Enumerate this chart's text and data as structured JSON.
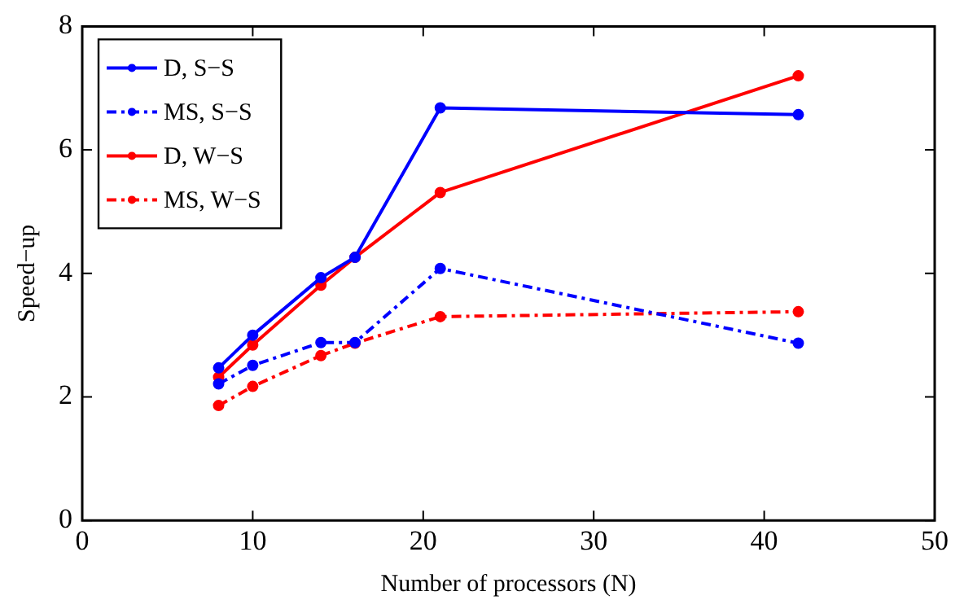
{
  "chart_data": {
    "type": "line",
    "xlabel": "Number of processors (N)",
    "ylabel": "Speed−up",
    "x": [
      8,
      10,
      14,
      16,
      21,
      42
    ],
    "series": [
      {
        "name": "D, S−S",
        "color": "#0000ff",
        "line_style": "solid",
        "values": [
          2.47,
          3.0,
          3.93,
          4.26,
          6.68,
          6.57
        ]
      },
      {
        "name": "MS, S−S",
        "color": "#0000ff",
        "line_style": "dashed",
        "values": [
          2.21,
          2.51,
          2.88,
          2.88,
          4.08,
          2.87
        ]
      },
      {
        "name": "D, W−S",
        "color": "#ff0000",
        "line_style": "solid",
        "values": [
          2.32,
          2.84,
          3.81,
          4.26,
          5.31,
          7.2
        ]
      },
      {
        "name": "MS, W−S",
        "color": "#ff0000",
        "line_style": "dashed",
        "values": [
          1.86,
          2.17,
          2.67,
          2.87,
          3.3,
          3.38
        ]
      }
    ],
    "xlim": [
      0,
      50
    ],
    "xticks": [
      0,
      10,
      20,
      30,
      40,
      50
    ],
    "ylim": [
      0,
      8
    ],
    "yticks": [
      0,
      2,
      4,
      6,
      8
    ],
    "grid": false,
    "legend": "top left",
    "marker": "circle"
  }
}
